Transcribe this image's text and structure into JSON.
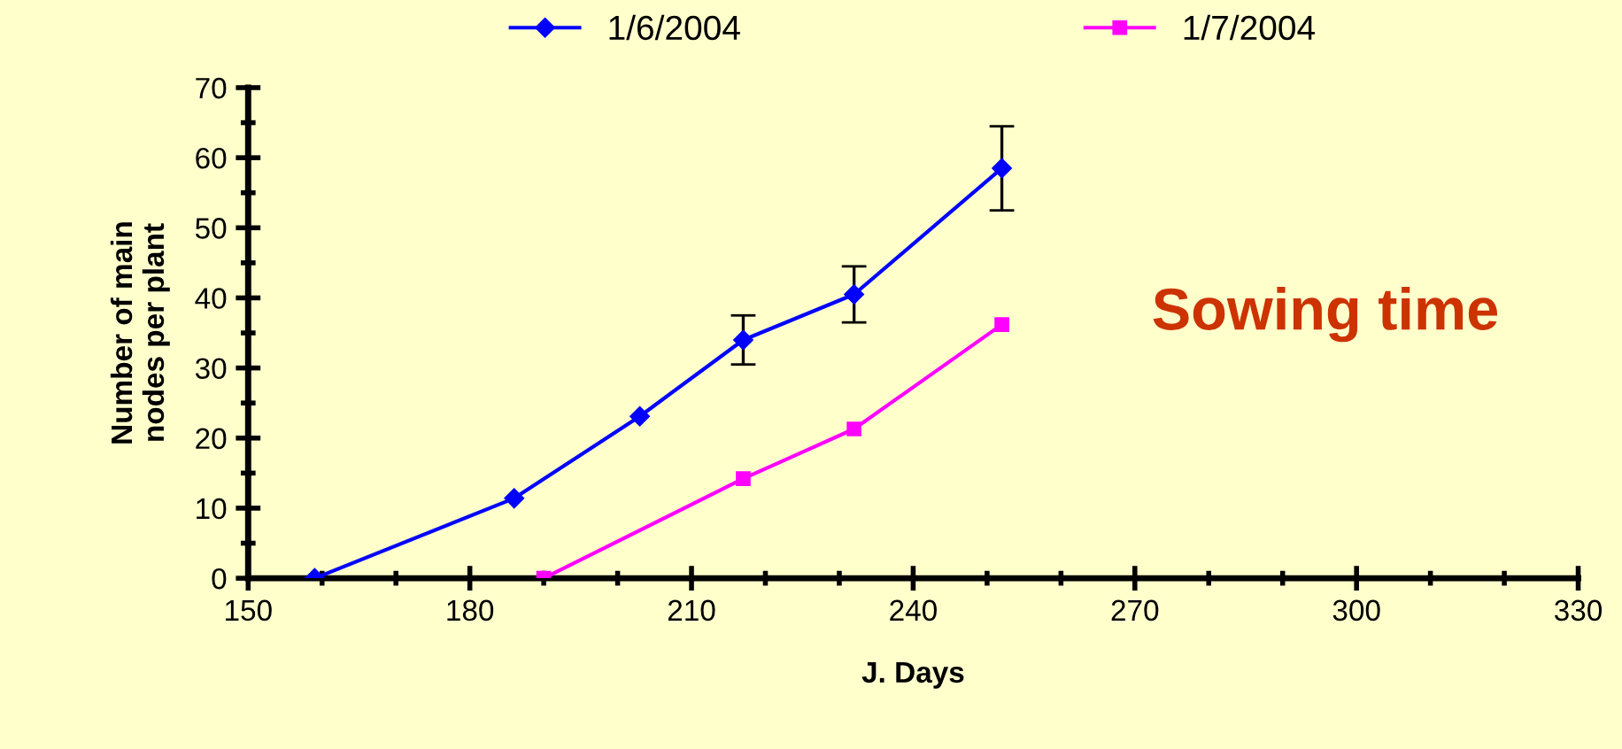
{
  "chart_data": {
    "type": "line",
    "xlabel": "J. Days",
    "ylabel": "Number of main\nnodes per plant",
    "xlim": [
      150,
      330
    ],
    "xticks": [
      150,
      180,
      210,
      240,
      270,
      300,
      330
    ],
    "ylim": [
      0,
      70
    ],
    "yticks": [
      0,
      10,
      20,
      30,
      40,
      50,
      60,
      70
    ],
    "grid": false,
    "legend": "top",
    "line_style": "solid",
    "annotations": [
      "Sowing time"
    ],
    "series": [
      {
        "name": "1/6/2004",
        "color": "#0000ff",
        "marker": "diamond",
        "x": [
          159,
          186,
          203,
          217,
          232,
          252
        ],
        "values": [
          0,
          11.4,
          23.1,
          34,
          40.5,
          58.5
        ],
        "errors": [
          null,
          null,
          null,
          3.5,
          4,
          6
        ]
      },
      {
        "name": "1/7/2004",
        "color": "#ff00ff",
        "marker": "square",
        "x": [
          190,
          217,
          232,
          252
        ],
        "values": [
          0,
          14.2,
          21.3,
          36.2
        ]
      }
    ]
  }
}
